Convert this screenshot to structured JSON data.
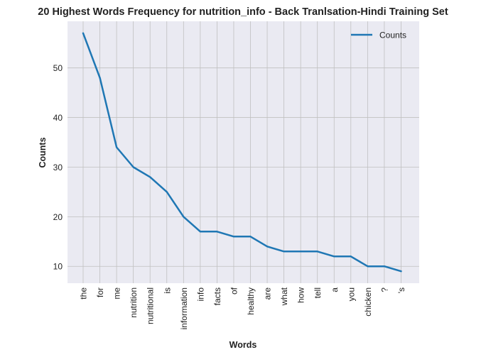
{
  "colors": {
    "plot_background": "#eaeaf2",
    "grid": "#c0c0c0",
    "line": "#1f77b4",
    "text": "#222222"
  },
  "chart_data": {
    "type": "line",
    "title": "20 Highest Words Frequency for nutrition_info - Back Tranlsation-Hindi Training Set",
    "xlabel": "Words",
    "ylabel": "Counts",
    "categories": [
      "the",
      "for",
      "me",
      "nutrition",
      "nutritional",
      "is",
      "information",
      "info",
      "facts",
      "of",
      "healthy",
      "are",
      "what",
      "how",
      "tell",
      "a",
      "you",
      "chicken",
      "?",
      "'s"
    ],
    "series": [
      {
        "name": "Counts",
        "values": [
          57,
          48,
          34,
          30,
          28,
          25,
          20,
          17,
          17,
          16,
          16,
          14,
          13,
          13,
          13,
          12,
          12,
          10,
          10,
          9
        ]
      }
    ],
    "ylim": [
      6.6,
      59.4
    ],
    "yticks": [
      10,
      20,
      30,
      40,
      50
    ],
    "grid": true,
    "legend_position": "top-right"
  }
}
